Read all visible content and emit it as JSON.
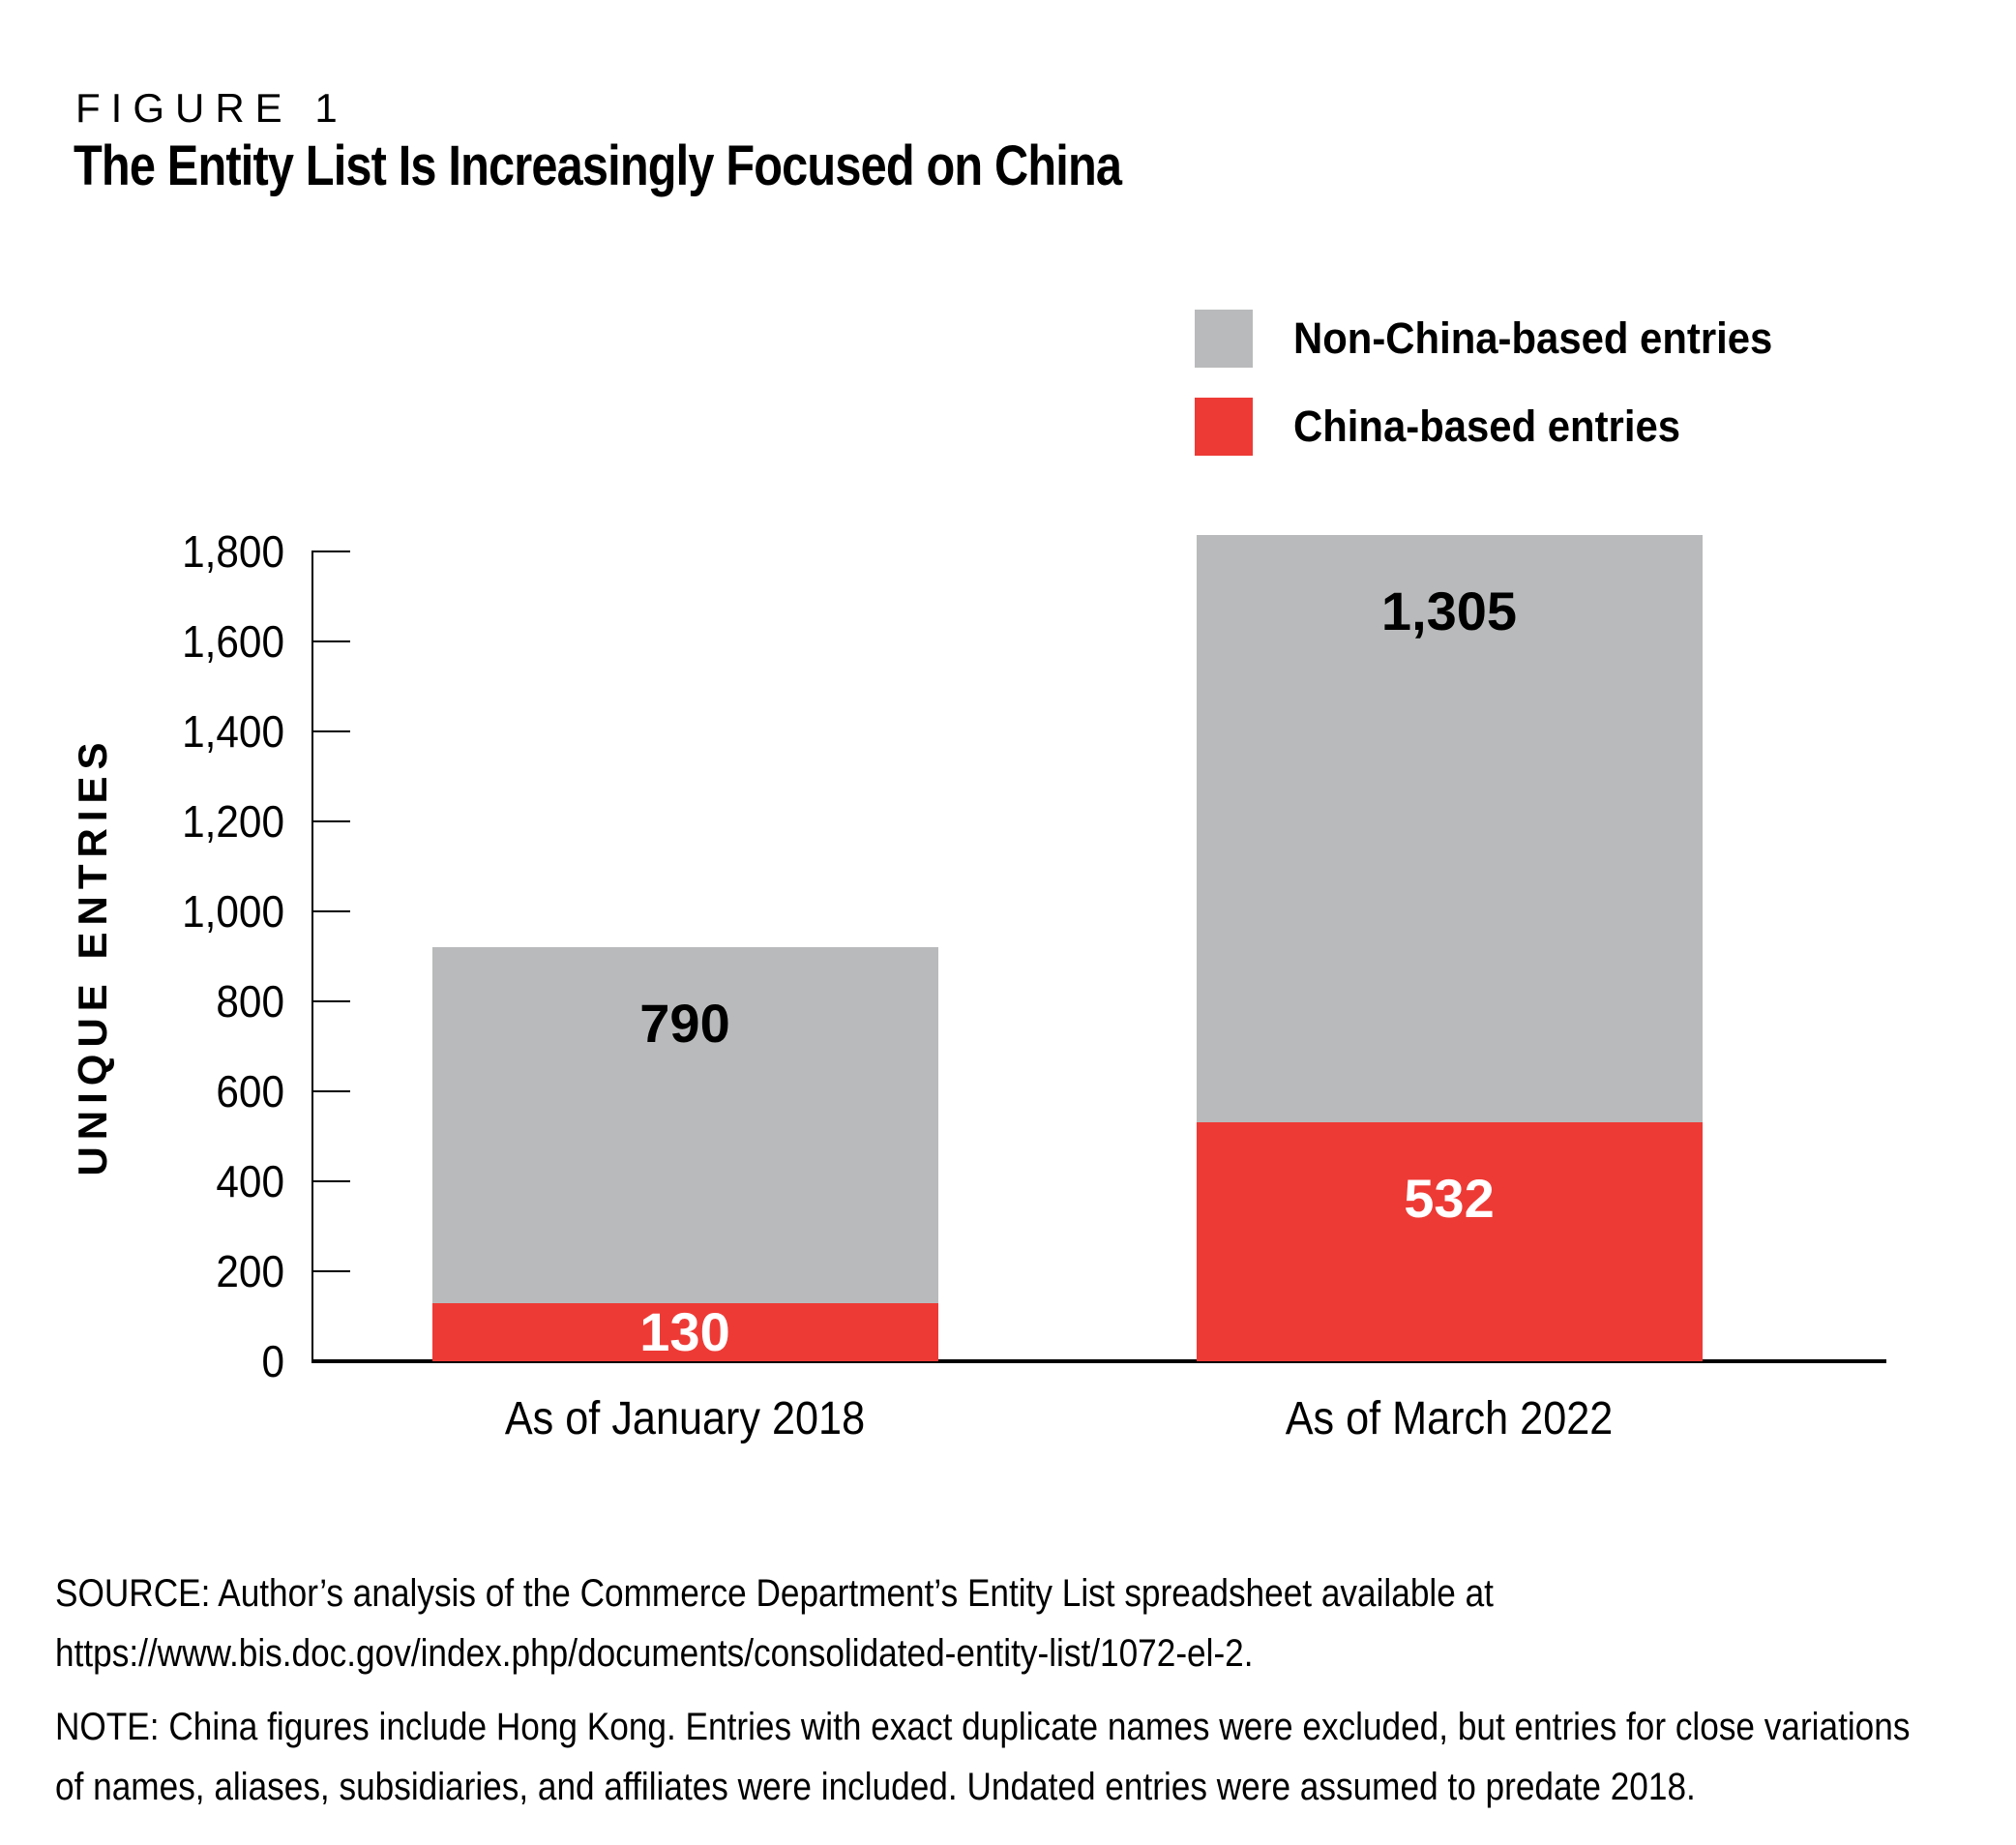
{
  "header": {
    "figure_label": "FIGURE 1",
    "title": "The Entity List Is Increasingly Focused on China"
  },
  "legend": [
    {
      "label": "Non-China-based entries",
      "color": "#b9babb"
    },
    {
      "label": "China-based entries",
      "color": "#ee3a35"
    }
  ],
  "chart_data": {
    "type": "bar",
    "stacked": true,
    "title": "The Entity List Is Increasingly Focused on China",
    "categories": [
      "As of January 2018",
      "As of March 2022"
    ],
    "series": [
      {
        "name": "China-based entries",
        "color": "#ee3a35",
        "label_color": "#ffffff",
        "values": [
          130,
          532
        ],
        "labels": [
          "130",
          "532"
        ]
      },
      {
        "name": "Non-China-based entries",
        "color": "#b9babb",
        "label_color": "#000000",
        "values": [
          790,
          1305
        ],
        "labels": [
          "790",
          "1,305"
        ]
      }
    ],
    "totals": [
      920,
      1837
    ],
    "xlabel": "",
    "ylabel": "UNIQUE ENTRIES",
    "ylim": [
      0,
      1800
    ],
    "yticks": [
      {
        "value": 0,
        "label": "0"
      },
      {
        "value": 200,
        "label": "200"
      },
      {
        "value": 400,
        "label": "400"
      },
      {
        "value": 600,
        "label": "600"
      },
      {
        "value": 800,
        "label": "800"
      },
      {
        "value": 1000,
        "label": "1,000"
      },
      {
        "value": 1200,
        "label": "1,200"
      },
      {
        "value": 1400,
        "label": "1,400"
      },
      {
        "value": 1600,
        "label": "1,600"
      },
      {
        "value": 1800,
        "label": "1,800"
      }
    ],
    "grid": false,
    "legend_position": "top-right"
  },
  "footer": {
    "source": {
      "lines": [
        "SOURCE: Author’s analysis of the Commerce Department’s Entity List spreadsheet available at",
        "https://www.bis.doc.gov/index.php/documents/consolidated-entity-list/1072-el-2."
      ]
    },
    "note": {
      "lines": [
        "NOTE: China figures include Hong Kong. Entries with exact duplicate names were excluded, but entries for close variations",
        "of names, aliases, subsidiaries, and affiliates were included. Undated entries were assumed to predate 2018."
      ]
    }
  }
}
